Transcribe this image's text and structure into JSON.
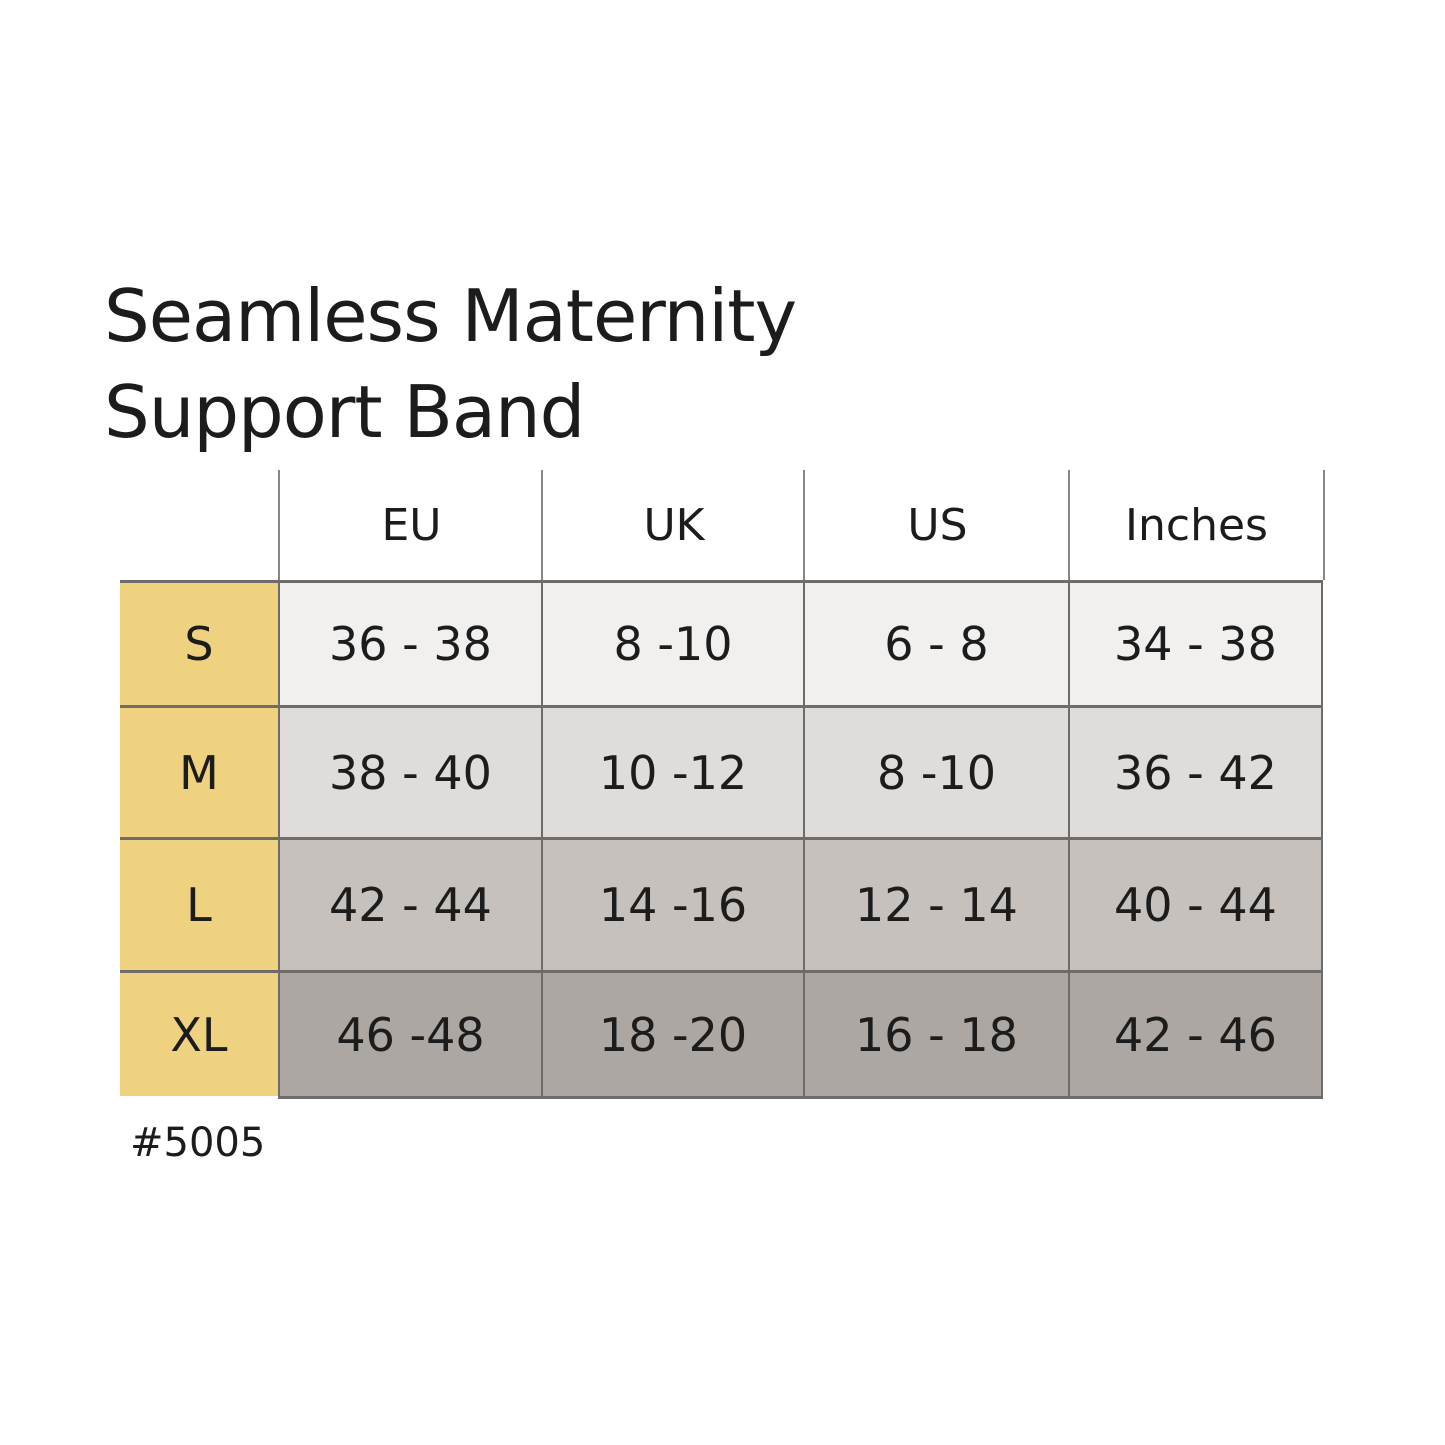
{
  "title": [
    "Seamless Maternity",
    "Support Band"
  ],
  "columns": [
    "EU",
    "UK",
    "US",
    "Inches"
  ],
  "rows": [
    {
      "size": "S",
      "values": [
        "36 - 38",
        "8 -10",
        "6 - 8",
        "34 - 38"
      ],
      "color": "#f1f0ef"
    },
    {
      "size": "M",
      "values": [
        "38 - 40",
        "10 -12",
        "8 -10",
        "36 - 42"
      ],
      "color": "#e0dcd9"
    },
    {
      "size": "L",
      "values": [
        "42 - 44",
        "14 -16",
        "12 - 14",
        "40 - 44"
      ],
      "color": "#c6c1bd"
    },
    {
      "size": "XL",
      "values": [
        "46 -48",
        "18 -20",
        "16 - 18",
        "42 - 46"
      ],
      "color": "#aca7a3"
    }
  ],
  "size_column_color": "#efd280",
  "product_code": "#5005"
}
